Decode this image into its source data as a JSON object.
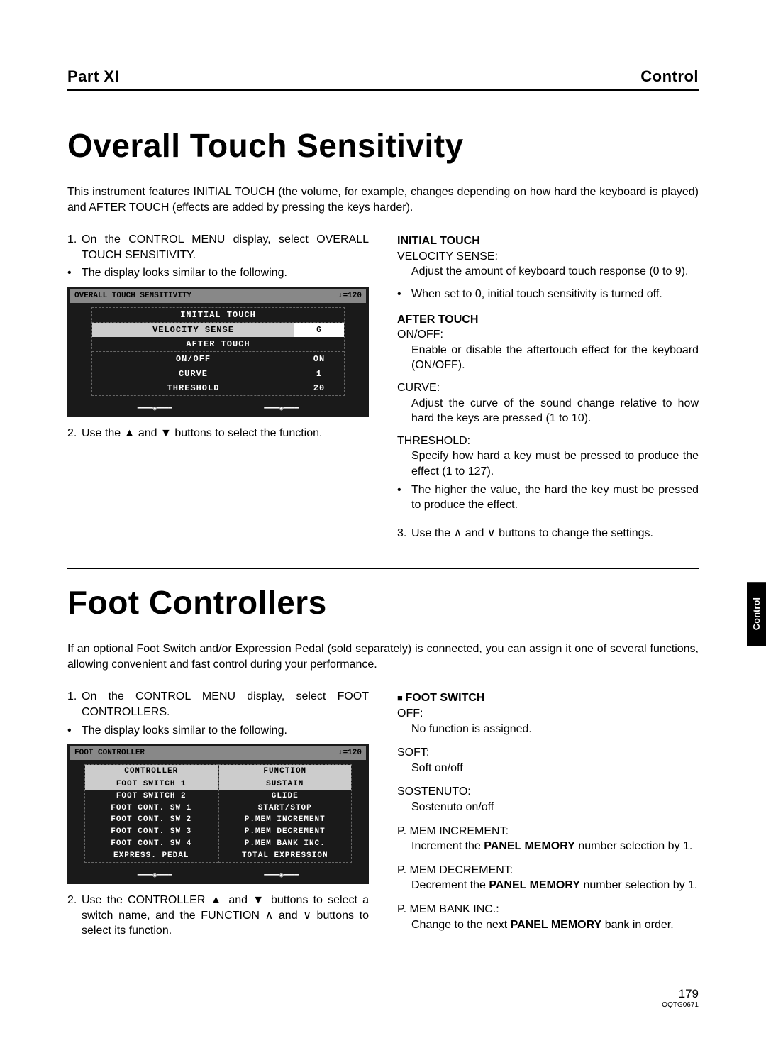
{
  "header": {
    "part": "Part XI",
    "section": "Control"
  },
  "section1": {
    "title": "Overall Touch Sensitivity",
    "intro": "This instrument features INITIAL TOUCH (the volume, for example, changes depending on how hard the keyboard is played) and AFTER TOUCH (effects are added by pressing the keys harder).",
    "step1_num": "1.",
    "step1": "On the CONTROL MENU display, select OVERALL TOUCH SENSITIVITY.",
    "bullet1": "The display looks similar to the following.",
    "step2_num": "2.",
    "step2_a": "Use the ",
    "step2_b": " and ",
    "step2_c": " buttons to select the function.",
    "lcd": {
      "title": "OVERALL TOUCH SENSITIVITY",
      "tempo": "♩=120",
      "h1": "INITIAL TOUCH",
      "r1_label": "VELOCITY SENSE",
      "r1_val": "6",
      "h2": "AFTER TOUCH",
      "r2_label": "ON/OFF",
      "r2_val": "ON",
      "r3_label": "CURVE",
      "r3_val": "1",
      "r4_label": "THRESHOLD",
      "r4_val": "20"
    },
    "right": {
      "h1": "INITIAL TOUCH",
      "p1_name": "VELOCITY SENSE:",
      "p1_desc": "Adjust the amount of keyboard touch response (0 to 9).",
      "p1_bullet": "When set to 0, initial touch sensitivity is turned off.",
      "h2": "AFTER TOUCH",
      "p2_name": "ON/OFF:",
      "p2_desc": "Enable or disable the aftertouch effect for the keyboard (ON/OFF).",
      "p3_name": "CURVE:",
      "p3_desc": "Adjust the curve of the sound change relative to how hard the keys are pressed (1 to 10).",
      "p4_name": "THRESHOLD:",
      "p4_desc": "Specify how hard a key must be pressed to produce the effect (1 to 127).",
      "p4_bullet": "The higher the value, the hard the key must be pressed to produce the effect.",
      "step3_num": "3.",
      "step3_a": "Use the ",
      "step3_b": " and ",
      "step3_c": " buttons to change the settings."
    }
  },
  "section2": {
    "title": "Foot Controllers",
    "intro": "If an optional Foot Switch and/or Expression Pedal (sold separately) is connected, you can assign it one of several functions, allowing convenient and fast control during your performance.",
    "step1_num": "1.",
    "step1": "On the CONTROL MENU display, select FOOT CONTROLLERS.",
    "bullet1": "The display looks similar to the following.",
    "step2_num": "2.",
    "step2_a": "Use the CONTROLLER ",
    "step2_b": " and ",
    "step2_c": " buttons to select a switch name, and the FUNCTION ",
    "step2_d": " and ",
    "step2_e": " buttons to select its function.",
    "lcd": {
      "title": "FOOT CONTROLLER",
      "tempo": "♩=120",
      "h_left": "CONTROLLER",
      "h_right": "FUNCTION",
      "rows": [
        {
          "l": "FOOT SWITCH 1",
          "r": "SUSTAIN",
          "hl": true
        },
        {
          "l": "FOOT SWITCH 2",
          "r": "GLIDE"
        },
        {
          "l": "FOOT CONT. SW 1",
          "r": "START/STOP"
        },
        {
          "l": "FOOT CONT. SW 2",
          "r": "P.MEM INCREMENT"
        },
        {
          "l": "FOOT CONT. SW 3",
          "r": "P.MEM DECREMENT"
        },
        {
          "l": "FOOT CONT. SW 4",
          "r": "P.MEM BANK INC."
        },
        {
          "l": "EXPRESS. PEDAL",
          "r": "TOTAL EXPRESSION"
        }
      ]
    },
    "right": {
      "h1": "FOOT SWITCH",
      "f1_name": "OFF:",
      "f1_desc": "No function is assigned.",
      "f2_name": "SOFT:",
      "f2_desc": "Soft on/off",
      "f3_name": "SOSTENUTO:",
      "f3_desc": "Sostenuto on/off",
      "f4_name": "P. MEM INCREMENT:",
      "f4_desc_a": "Increment the ",
      "f4_desc_b": "PANEL MEMORY",
      "f4_desc_c": " number selection by 1.",
      "f5_name": "P. MEM DECREMENT:",
      "f5_desc_a": "Decrement the ",
      "f5_desc_b": "PANEL MEMORY",
      "f5_desc_c": " number selection by 1.",
      "f6_name": "P. MEM BANK INC.:",
      "f6_desc_a": "Change to the next ",
      "f6_desc_b": "PANEL MEMORY",
      "f6_desc_c": " bank in order."
    }
  },
  "sideTab": "Control",
  "footer": {
    "page": "179",
    "code": "QQTG0671"
  }
}
